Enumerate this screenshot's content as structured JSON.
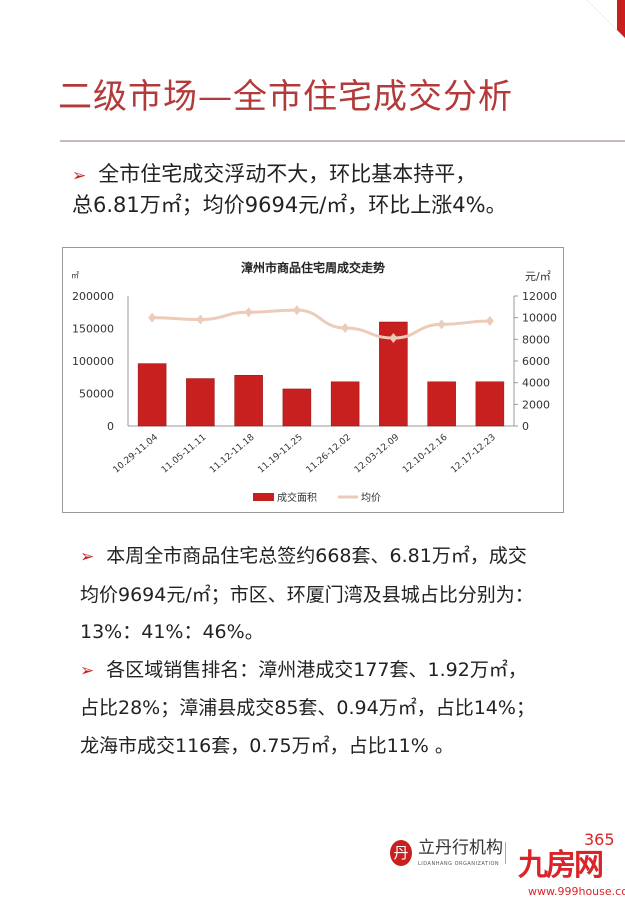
{
  "page": {
    "title": "二级市场—全市住宅成交分析",
    "summary_lines": [
      "全市住宅成交浮动不大，环比基本持平，",
      "总6.81万㎡；均价9694元/㎡，环比上涨4%。"
    ],
    "paragraphs": [
      [
        "本周全市商品住宅总签约668套、6.81万㎡，成交",
        "均价9694元/㎡；市区、环厦门湾及县城占比分别为：",
        "13%：41%：46%。"
      ],
      [
        "各区域销售排名：漳州港成交177套、1.92万㎡，",
        "占比28%；漳浦县成交85套、0.94万㎡，占比14%；",
        "龙海市成交116套，0.75万㎡，占比11% 。"
      ]
    ],
    "accent_color": "#c8201e"
  },
  "footer": {
    "logo_name": "立丹行机构",
    "logo_sub": "LIDANHANG ORGANIZATION",
    "logo_seal": "丹",
    "partner_brand": "九房网",
    "partner_number": "365",
    "partner_url": "www.999house.com"
  },
  "chart_data": {
    "type": "bar+line",
    "title": "漳州市商品住宅周成交走势",
    "categories": [
      "10.29-11.04",
      "11.05-11.11",
      "11.12-11.18",
      "11.19-11.25",
      "11.26-12.02",
      "12.03-12.09",
      "12.10-12.16",
      "12.17-12.23"
    ],
    "series": [
      {
        "name": "成交面积",
        "type": "bar",
        "axis": "left",
        "color": "#c8201e",
        "values": [
          96000,
          73000,
          78000,
          57000,
          68000,
          160000,
          68000,
          68100
        ]
      },
      {
        "name": "均价",
        "type": "line",
        "axis": "right",
        "color": "#eccbb8",
        "values": [
          10000,
          9830,
          10500,
          10700,
          9050,
          8120,
          9380,
          9694
        ]
      }
    ],
    "ylabel_left": "㎡",
    "ylabel_right": "元/㎡",
    "ylim_left": [
      0,
      200000
    ],
    "ylim_right": [
      0,
      12000
    ],
    "yticks_left": [
      "0",
      "50000",
      "100000",
      "150000",
      "200000"
    ],
    "yticks_right": [
      "0",
      "2000",
      "4000",
      "6000",
      "8000",
      "10000",
      "12000"
    ],
    "legend_position": "bottom",
    "grid": false
  }
}
